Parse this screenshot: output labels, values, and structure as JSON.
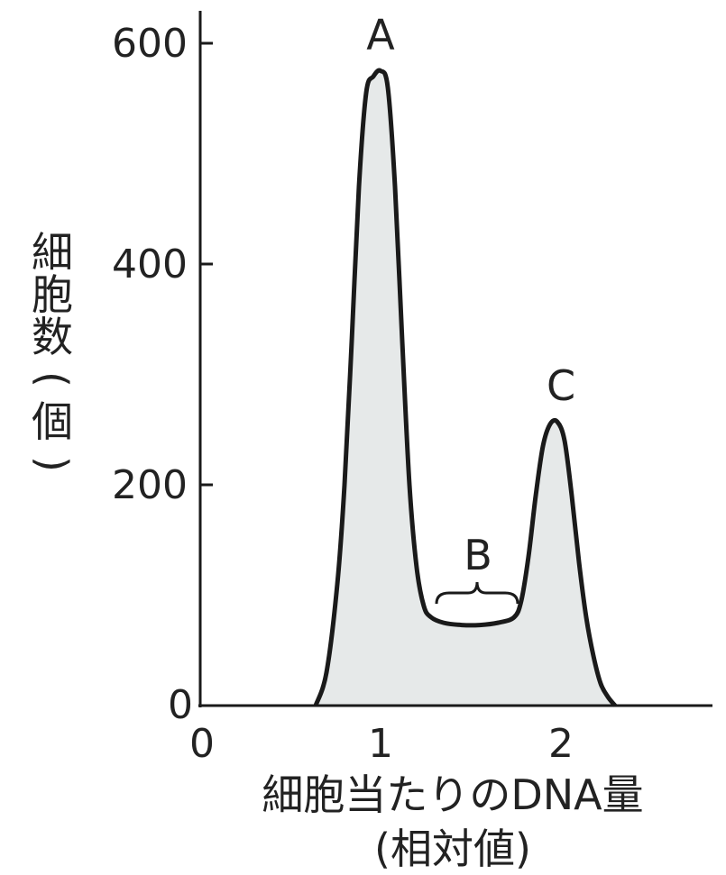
{
  "chart_data": {
    "type": "area",
    "title": "",
    "xlabel": "細胞当たりのDNA量",
    "xlabel_sub": "(相対値)",
    "ylabel": "細胞数(個)",
    "ylabel_chars": [
      "細",
      "胞",
      "数",
      "(",
      "個",
      ")"
    ],
    "xlim": [
      0,
      2.8
    ],
    "ylim": [
      0,
      620
    ],
    "x_ticks": [
      0,
      1,
      2
    ],
    "x_tick_labels": [
      "0",
      "1",
      "2"
    ],
    "y_ticks": [
      0,
      200,
      400,
      600
    ],
    "y_tick_labels": [
      "0",
      "200",
      "400",
      "600"
    ],
    "grid": false,
    "fill_color": "#e6e9e9",
    "line_color": "#1a1a1a",
    "series": [
      {
        "x": [
          0.64,
          0.7,
          0.76,
          0.8,
          0.84,
          0.88,
          0.92,
          0.96,
          1.0,
          1.04,
          1.08,
          1.12,
          1.16,
          1.2,
          1.24,
          1.28,
          1.35,
          1.45,
          1.55,
          1.65,
          1.74,
          1.78,
          1.82,
          1.86,
          1.9,
          1.94,
          1.98,
          2.02,
          2.06,
          2.1,
          2.14,
          2.18,
          2.22,
          2.26,
          2.3
        ],
        "y": [
          0,
          30,
          110,
          200,
          330,
          470,
          555,
          570,
          575,
          560,
          470,
          330,
          200,
          125,
          90,
          80,
          75,
          73,
          73,
          75,
          80,
          95,
          135,
          190,
          235,
          255,
          257,
          240,
          190,
          130,
          80,
          45,
          20,
          8,
          0
        ]
      }
    ],
    "annotations": [
      {
        "text": "A",
        "x": 1.0,
        "y": 575
      },
      {
        "text": "B",
        "x_start": 1.3,
        "x_end": 1.78,
        "y": 80
      },
      {
        "text": "C",
        "x": 2.0,
        "y": 257
      }
    ]
  }
}
